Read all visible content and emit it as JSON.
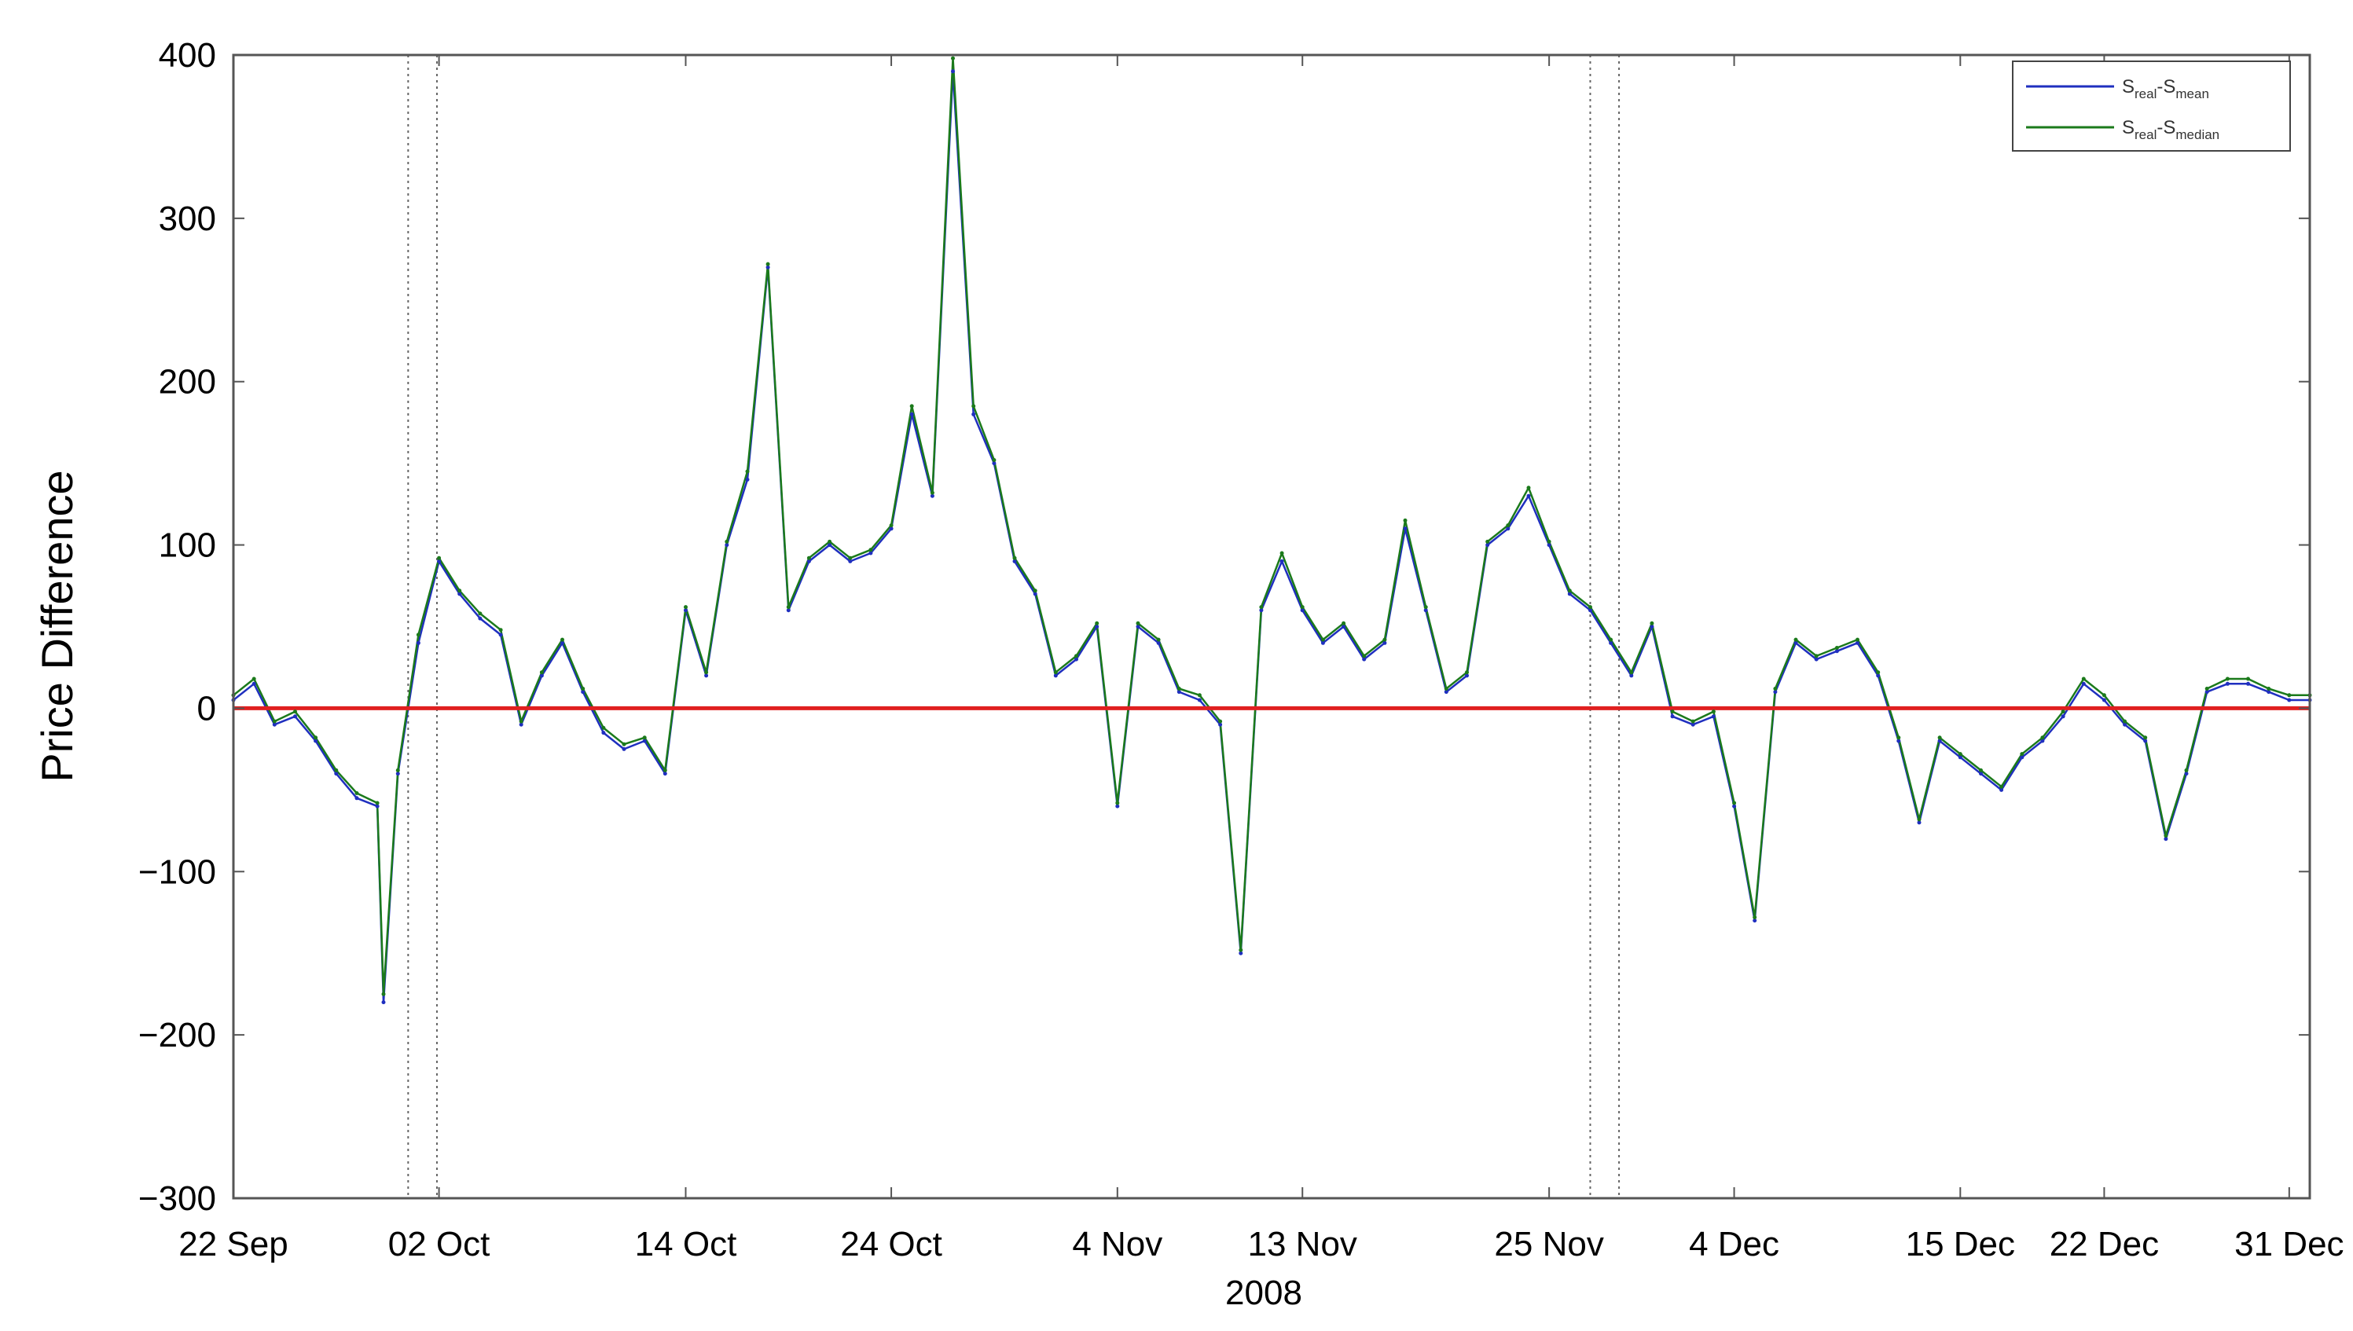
{
  "chart_data": {
    "type": "line",
    "title": "",
    "ylabel": "Price Difference",
    "xlabel": "2008",
    "ylim": [
      -300,
      400
    ],
    "yticks": [
      400,
      300,
      200,
      100,
      0,
      -100,
      -200,
      -300
    ],
    "ytick_labels": [
      "400",
      "300",
      "200",
      "100",
      "0",
      "−100",
      "−200",
      "−300"
    ],
    "xlim_days_since_sep22": [
      0,
      101
    ],
    "xticks": [
      {
        "label": "22 Sep",
        "day": 0
      },
      {
        "label": "02 Oct",
        "day": 10
      },
      {
        "label": "14 Oct",
        "day": 22
      },
      {
        "label": "24 Oct",
        "day": 32
      },
      {
        "label": "4 Nov",
        "day": 43
      },
      {
        "label": "13 Nov",
        "day": 52
      },
      {
        "label": "25 Nov",
        "day": 64
      },
      {
        "label": "4 Dec",
        "day": 73
      },
      {
        "label": "15 Dec",
        "day": 84
      },
      {
        "label": "22 Dec",
        "day": 91
      },
      {
        "label": "31 Dec",
        "day": 100
      }
    ],
    "grid": false,
    "legend": {
      "placement": "top-right"
    },
    "vertical_markers_days": [
      8.5,
      9.9,
      66.0,
      67.4
    ],
    "series": [
      {
        "name": "S_real-S_mean",
        "legend_main": "S",
        "legend_sub1": "real",
        "legend_mid": "-S",
        "legend_sub2": "mean",
        "color": "#1f2fbf",
        "x": [
          0,
          1,
          2,
          3,
          4,
          5,
          6,
          7,
          7.3,
          8,
          9,
          10,
          11,
          12,
          13,
          14,
          15,
          16,
          17,
          18,
          19,
          20,
          21,
          22,
          23,
          24,
          25,
          26,
          27,
          28,
          29,
          30,
          31,
          32,
          33,
          34,
          35,
          36,
          37,
          38,
          39,
          40,
          41,
          42,
          43,
          44,
          45,
          46,
          47,
          48,
          49,
          50,
          51,
          52,
          53,
          54,
          55,
          56,
          57,
          58,
          59,
          60,
          61,
          62,
          63,
          64,
          65,
          66,
          67,
          68,
          69,
          70,
          71,
          72,
          73,
          74,
          75,
          76,
          77,
          78,
          79,
          80,
          81,
          82,
          83,
          84,
          85,
          86,
          87,
          88,
          89,
          90,
          91,
          92,
          93,
          94,
          95,
          96,
          97,
          98,
          99,
          100,
          101
        ],
        "values": [
          5,
          15,
          -10,
          -5,
          -20,
          -40,
          -55,
          -60,
          -180,
          -40,
          40,
          90,
          70,
          55,
          45,
          -10,
          20,
          40,
          10,
          -15,
          -25,
          -20,
          -40,
          60,
          20,
          100,
          140,
          270,
          60,
          90,
          100,
          90,
          95,
          110,
          180,
          130,
          390,
          180,
          150,
          90,
          70,
          20,
          30,
          50,
          -60,
          50,
          40,
          10,
          5,
          -10,
          -150,
          60,
          90,
          60,
          40,
          50,
          30,
          40,
          110,
          60,
          10,
          20,
          100,
          110,
          130,
          100,
          70,
          60,
          40,
          20,
          50,
          -5,
          -10,
          -5,
          -60,
          -130,
          10,
          40,
          30,
          35,
          40,
          20,
          -20,
          -70,
          -20,
          -30,
          -40,
          -50,
          -30,
          -20,
          -5,
          15,
          5,
          -10,
          -20,
          -80,
          -40,
          10,
          15,
          15,
          10,
          5,
          5
        ]
      },
      {
        "name": "S_real-S_median",
        "legend_main": "S",
        "legend_sub1": "real",
        "legend_mid": "-S",
        "legend_sub2": "median",
        "color": "#1b7a1b",
        "x": [
          0,
          1,
          2,
          3,
          4,
          5,
          6,
          7,
          7.3,
          8,
          9,
          10,
          11,
          12,
          13,
          14,
          15,
          16,
          17,
          18,
          19,
          20,
          21,
          22,
          23,
          24,
          25,
          26,
          27,
          28,
          29,
          30,
          31,
          32,
          33,
          34,
          35,
          36,
          37,
          38,
          39,
          40,
          41,
          42,
          43,
          44,
          45,
          46,
          47,
          48,
          49,
          50,
          51,
          52,
          53,
          54,
          55,
          56,
          57,
          58,
          59,
          60,
          61,
          62,
          63,
          64,
          65,
          66,
          67,
          68,
          69,
          70,
          71,
          72,
          73,
          74,
          75,
          76,
          77,
          78,
          79,
          80,
          81,
          82,
          83,
          84,
          85,
          86,
          87,
          88,
          89,
          90,
          91,
          92,
          93,
          94,
          95,
          96,
          97,
          98,
          99,
          100,
          101
        ],
        "values": [
          8,
          18,
          -8,
          -2,
          -18,
          -38,
          -52,
          -58,
          -175,
          -38,
          45,
          92,
          72,
          58,
          48,
          -8,
          22,
          42,
          12,
          -12,
          -22,
          -18,
          -38,
          62,
          22,
          102,
          145,
          272,
          62,
          92,
          102,
          92,
          97,
          112,
          185,
          132,
          398,
          185,
          152,
          92,
          72,
          22,
          32,
          52,
          -58,
          52,
          42,
          12,
          8,
          -8,
          -148,
          62,
          95,
          62,
          42,
          52,
          32,
          42,
          115,
          62,
          12,
          22,
          102,
          112,
          135,
          102,
          72,
          62,
          42,
          22,
          52,
          -2,
          -8,
          -2,
          -58,
          -128,
          12,
          42,
          32,
          37,
          42,
          22,
          -18,
          -68,
          -18,
          -28,
          -38,
          -48,
          -28,
          -18,
          -2,
          18,
          8,
          -8,
          -18,
          -78,
          -38,
          12,
          18,
          18,
          12,
          8,
          8
        ]
      },
      {
        "name": "",
        "color": "#e02020",
        "x": [
          0,
          101
        ],
        "values": [
          0,
          0
        ]
      }
    ]
  }
}
